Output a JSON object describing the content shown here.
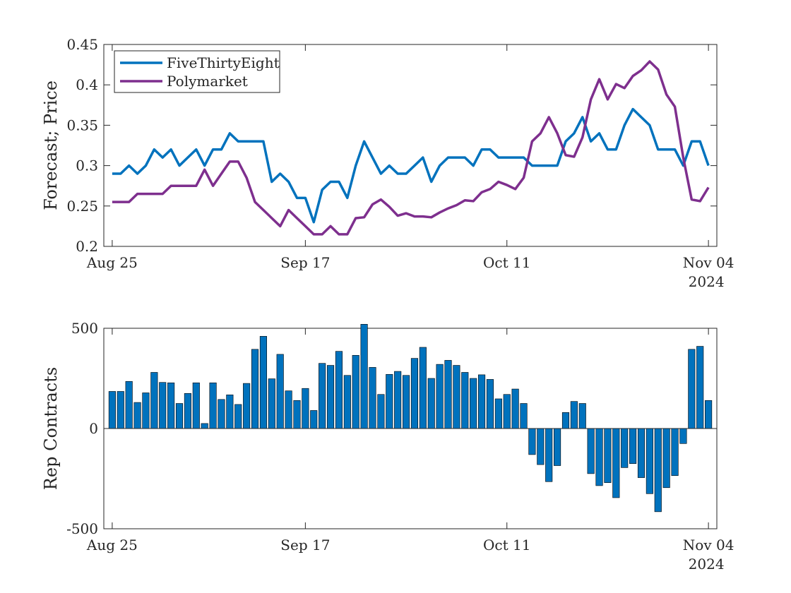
{
  "figure": {
    "top_chart": {
      "ylabel": "Forecast; Price"
    },
    "bottom_chart": {
      "ylabel": "Rep Contracts"
    },
    "x_tick_labels": [
      "Aug 25",
      "Sep 17",
      "Oct 11",
      "Nov 04"
    ],
    "x_secondary_label": "2024"
  },
  "chart_data": [
    {
      "type": "line",
      "x_start": "2024-08-25",
      "x_end": "2024-11-04",
      "xlim": [
        "2024-08-24",
        "2024-11-05"
      ],
      "x_ticks": [
        "2024-08-25",
        "2024-09-17",
        "2024-10-11",
        "2024-11-04"
      ],
      "ylim": [
        0.2,
        0.45
      ],
      "y_ticks": [
        0.2,
        0.25,
        0.3,
        0.35,
        0.4,
        0.45
      ],
      "ylabel": "Forecast; Price",
      "legend_position": "top-left",
      "grid": false,
      "series": [
        {
          "name": "FiveThirtyEight",
          "color": "#0072BD",
          "values": [
            0.29,
            0.29,
            0.3,
            0.29,
            0.3,
            0.32,
            0.31,
            0.32,
            0.3,
            0.31,
            0.32,
            0.3,
            0.32,
            0.32,
            0.34,
            0.33,
            0.33,
            0.33,
            0.33,
            0.28,
            0.29,
            0.28,
            0.26,
            0.26,
            0.23,
            0.27,
            0.28,
            0.28,
            0.26,
            0.3,
            0.33,
            0.31,
            0.29,
            0.3,
            0.29,
            0.29,
            0.3,
            0.31,
            0.28,
            0.3,
            0.31,
            0.31,
            0.31,
            0.3,
            0.32,
            0.32,
            0.31,
            0.31,
            0.31,
            0.31,
            0.3,
            0.3,
            0.3,
            0.3,
            0.33,
            0.34,
            0.36,
            0.33,
            0.34,
            0.32,
            0.32,
            0.35,
            0.37,
            0.36,
            0.35,
            0.32,
            0.32,
            0.32,
            0.3,
            0.33,
            0.33,
            0.3
          ]
        },
        {
          "name": "Polymarket",
          "color": "#7E2F8E",
          "values": [
            0.255,
            0.255,
            0.255,
            0.265,
            0.265,
            0.265,
            0.265,
            0.275,
            0.275,
            0.275,
            0.275,
            0.295,
            0.275,
            0.29,
            0.305,
            0.305,
            0.285,
            0.255,
            0.245,
            0.235,
            0.225,
            0.245,
            0.235,
            0.225,
            0.215,
            0.215,
            0.225,
            0.215,
            0.215,
            0.235,
            0.236,
            0.252,
            0.258,
            0.249,
            0.238,
            0.241,
            0.237,
            0.237,
            0.236,
            0.242,
            0.247,
            0.251,
            0.257,
            0.256,
            0.267,
            0.271,
            0.28,
            0.276,
            0.271,
            0.285,
            0.33,
            0.34,
            0.36,
            0.34,
            0.313,
            0.311,
            0.335,
            0.382,
            0.407,
            0.382,
            0.401,
            0.396,
            0.411,
            0.418,
            0.429,
            0.419,
            0.388,
            0.373,
            0.31,
            0.258,
            0.256,
            0.273
          ]
        }
      ]
    },
    {
      "type": "bar",
      "x_start": "2024-08-25",
      "x_end": "2024-11-04",
      "xlim": [
        "2024-08-24",
        "2024-11-05"
      ],
      "x_ticks": [
        "2024-08-25",
        "2024-09-17",
        "2024-10-11",
        "2024-11-04"
      ],
      "ylim": [
        -500,
        500
      ],
      "y_ticks": [
        -500,
        0,
        500
      ],
      "ylabel": "Rep Contracts",
      "grid": false,
      "bar_color": "#0072BD",
      "values": [
        185,
        185,
        235,
        130,
        178,
        280,
        230,
        228,
        125,
        175,
        228,
        25,
        228,
        145,
        168,
        120,
        225,
        395,
        460,
        248,
        370,
        188,
        140,
        200,
        90,
        325,
        315,
        385,
        265,
        365,
        520,
        305,
        170,
        270,
        285,
        265,
        350,
        405,
        250,
        320,
        340,
        315,
        280,
        250,
        268,
        245,
        148,
        170,
        197,
        125,
        -130,
        -180,
        -265,
        -185,
        80,
        135,
        125,
        -225,
        -285,
        -270,
        -345,
        -195,
        -175,
        -245,
        -325,
        -415,
        -295,
        -235,
        -75,
        395,
        410,
        140
      ]
    }
  ]
}
